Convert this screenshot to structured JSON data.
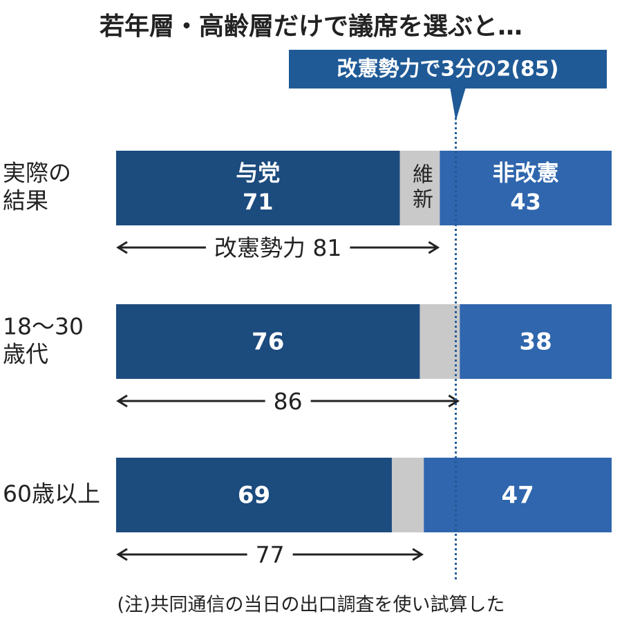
{
  "chart_data": {
    "type": "stacked-bar",
    "title": "若年層・高齢層だけで議席を選ぶと…",
    "categories": [
      [
        "実際の",
        "結果"
      ],
      [
        "18〜30",
        "歳代"
      ],
      [
        "60歳以上"
      ]
    ],
    "series": [
      {
        "name": "与党",
        "color": "#1c4b7e",
        "values": [
          71,
          76,
          69
        ]
      },
      {
        "name": "維新",
        "color": "#c9c9c9",
        "values": [
          10,
          10,
          8
        ]
      },
      {
        "name": "非改憲",
        "color": "#2f66ad",
        "values": [
          43,
          38,
          47
        ]
      }
    ],
    "totals": {
      "label": "改憲勢力",
      "values": [
        81,
        86,
        77
      ]
    },
    "threshold": {
      "label": "改憲勢力で3分の2(85)",
      "value": 85,
      "color": "#1f5a96"
    },
    "xlim": [
      0,
      124
    ],
    "note": "(注)共同通信の当日の出口調査を使い試算した"
  }
}
